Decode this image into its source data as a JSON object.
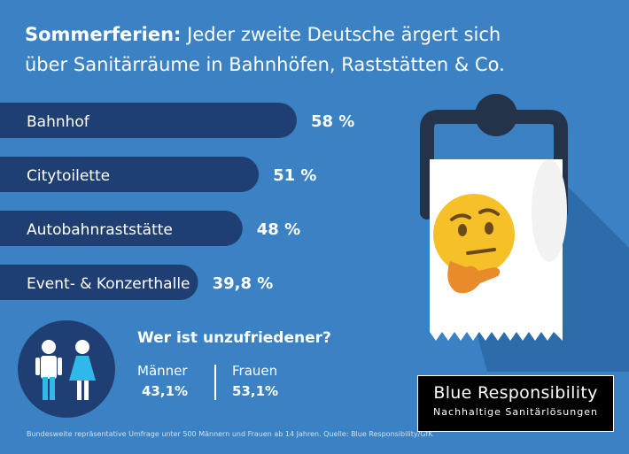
{
  "title": {
    "bold": "Sommerferien:",
    "rest": "Jeder zweite Deutsche ärgert sich",
    "line2": "über Sanitärräume in Bahnhöfen, Raststätten & Co."
  },
  "chart_data": {
    "type": "bar",
    "orientation": "horizontal",
    "categories": [
      "Bahnhof",
      "Citytoilette",
      "Autobahnraststätte",
      "Event- & Konzerthalle"
    ],
    "values": [
      58,
      51,
      48,
      39.8
    ],
    "value_labels": [
      "58 %",
      "51 %",
      "48 %",
      "39,8 %"
    ],
    "bar_colors": [
      "#1f3f73",
      "#1f3f73",
      "#1f3f73",
      "#1f3f73"
    ],
    "xlim": [
      0,
      100
    ]
  },
  "question": "Wer ist unzufriedener?",
  "gender": {
    "male_label": "Männer",
    "male_value": "43,1%",
    "female_label": "Frauen",
    "female_value": "53,1%"
  },
  "brand": {
    "name": "Blue Responsibility",
    "subtitle": "Nachhaltige Sanitärlösungen"
  },
  "footnote": "Bundesweite repräsentative Umfrage unter 500 Männern und Frauen ab 14 Jahren. Quelle: Blue Responsibility/GfK",
  "colors": {
    "background": "#3a82c4",
    "bar": "#1f3f73",
    "male_icon": "#ffffff",
    "female_icon": "#2fb8e8"
  }
}
